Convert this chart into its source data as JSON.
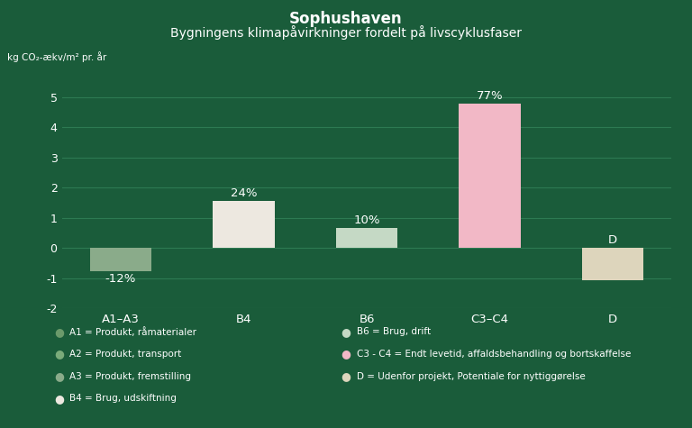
{
  "title": "Sophushaven",
  "subtitle": "Bygningens klimapåvirkninger fordelt på livscyklusfaser",
  "ylabel": "kg CO₂-ækv/m² pr. år",
  "categories": [
    "A1–A3",
    "B4",
    "B6",
    "C3–C4",
    "D"
  ],
  "values": [
    -0.78,
    1.55,
    0.65,
    4.78,
    -1.08
  ],
  "percentages": [
    "-12%",
    "24%",
    "10%",
    "77%",
    "D"
  ],
  "bar_colors": [
    "#8aab8a",
    "#ede8e0",
    "#c5d9c5",
    "#f2b8c6",
    "#ddd5bc"
  ],
  "background_color": "#1a5c3a",
  "text_color": "#ffffff",
  "grid_color": "#2d7a52",
  "ylim": [
    -2.0,
    5.8
  ],
  "yticks": [
    -2,
    -1,
    0,
    1,
    2,
    3,
    4,
    5
  ],
  "legend_left": [
    {
      "label": "A1 = Produkt, råmaterialer",
      "color": "#6b9a6b"
    },
    {
      "label": "A2 = Produkt, transport",
      "color": "#7aab7a"
    },
    {
      "label": "A3 = Produkt, fremstilling",
      "color": "#8aab8a"
    },
    {
      "label": "B4 = Brug, udskiftning",
      "color": "#ede8e0"
    }
  ],
  "legend_right": [
    {
      "label": "B6 = Brug, drift",
      "color": "#c5d9c5"
    },
    {
      "label": "C3 - C4 = Endt levetid, affaldsbehandling og bortskaffelse",
      "color": "#f2b8c6"
    },
    {
      "label": "D = Udenfor projekt, Potentiale for nyttiggørelse",
      "color": "#ddd5bc"
    }
  ]
}
